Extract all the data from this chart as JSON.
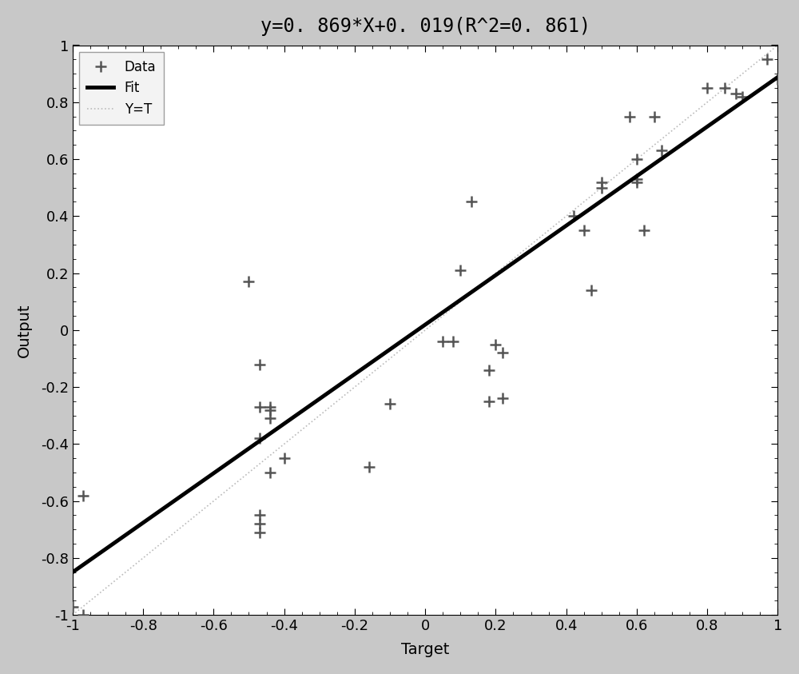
{
  "title": "y=0. 869*X+0. 019(R^2=0. 861)",
  "xlabel": "Target",
  "ylabel": "Output",
  "xlim": [
    -1,
    1
  ],
  "ylim": [
    -1,
    1
  ],
  "fit_slope": 0.869,
  "fit_intercept": 0.019,
  "yt_slope": 1.0,
  "yt_intercept": 0.0,
  "data_points": [
    [
      -1.0,
      -0.97
    ],
    [
      -0.97,
      -1.0
    ],
    [
      -0.97,
      -0.58
    ],
    [
      -0.5,
      0.17
    ],
    [
      -0.47,
      -0.27
    ],
    [
      -0.47,
      -0.12
    ],
    [
      -0.47,
      -0.38
    ],
    [
      -0.47,
      -0.65
    ],
    [
      -0.47,
      -0.68
    ],
    [
      -0.47,
      -0.71
    ],
    [
      -0.44,
      -0.28
    ],
    [
      -0.44,
      -0.27
    ],
    [
      -0.44,
      -0.31
    ],
    [
      -0.44,
      -0.5
    ],
    [
      -0.4,
      -0.45
    ],
    [
      -0.16,
      -0.48
    ],
    [
      -0.1,
      -0.26
    ],
    [
      0.05,
      -0.04
    ],
    [
      0.08,
      -0.04
    ],
    [
      0.1,
      0.21
    ],
    [
      0.13,
      0.45
    ],
    [
      0.18,
      -0.25
    ],
    [
      0.18,
      -0.14
    ],
    [
      0.2,
      -0.05
    ],
    [
      0.22,
      -0.08
    ],
    [
      0.22,
      -0.24
    ],
    [
      0.42,
      0.4
    ],
    [
      0.45,
      0.35
    ],
    [
      0.47,
      0.14
    ],
    [
      0.5,
      0.52
    ],
    [
      0.5,
      0.5
    ],
    [
      0.58,
      0.75
    ],
    [
      0.6,
      0.53
    ],
    [
      0.6,
      0.52
    ],
    [
      0.6,
      0.6
    ],
    [
      0.62,
      0.35
    ],
    [
      0.65,
      0.75
    ],
    [
      0.67,
      0.63
    ],
    [
      0.8,
      0.85
    ],
    [
      0.85,
      0.85
    ],
    [
      0.88,
      0.83
    ],
    [
      0.9,
      0.82
    ],
    [
      0.97,
      0.95
    ],
    [
      1.0,
      0.88
    ]
  ],
  "data_color": "#555555",
  "fit_color": "#000000",
  "yt_color": "#bbbbbb",
  "fig_facecolor": "#c8c8c8",
  "axes_facecolor": "#ffffff",
  "tick_label_fontsize": 13,
  "axis_label_fontsize": 14,
  "title_fontsize": 17,
  "legend_fontsize": 12,
  "fit_linewidth": 3.5,
  "yt_linewidth": 1.2,
  "marker_size": 10,
  "marker_linewidth": 1.8,
  "xticks": [
    -1,
    -0.8,
    -0.6,
    -0.4,
    -0.2,
    0,
    0.2,
    0.4,
    0.6,
    0.8,
    1
  ],
  "yticks": [
    -1,
    -0.8,
    -0.6,
    -0.4,
    -0.2,
    0,
    0.2,
    0.4,
    0.6,
    0.8,
    1
  ]
}
